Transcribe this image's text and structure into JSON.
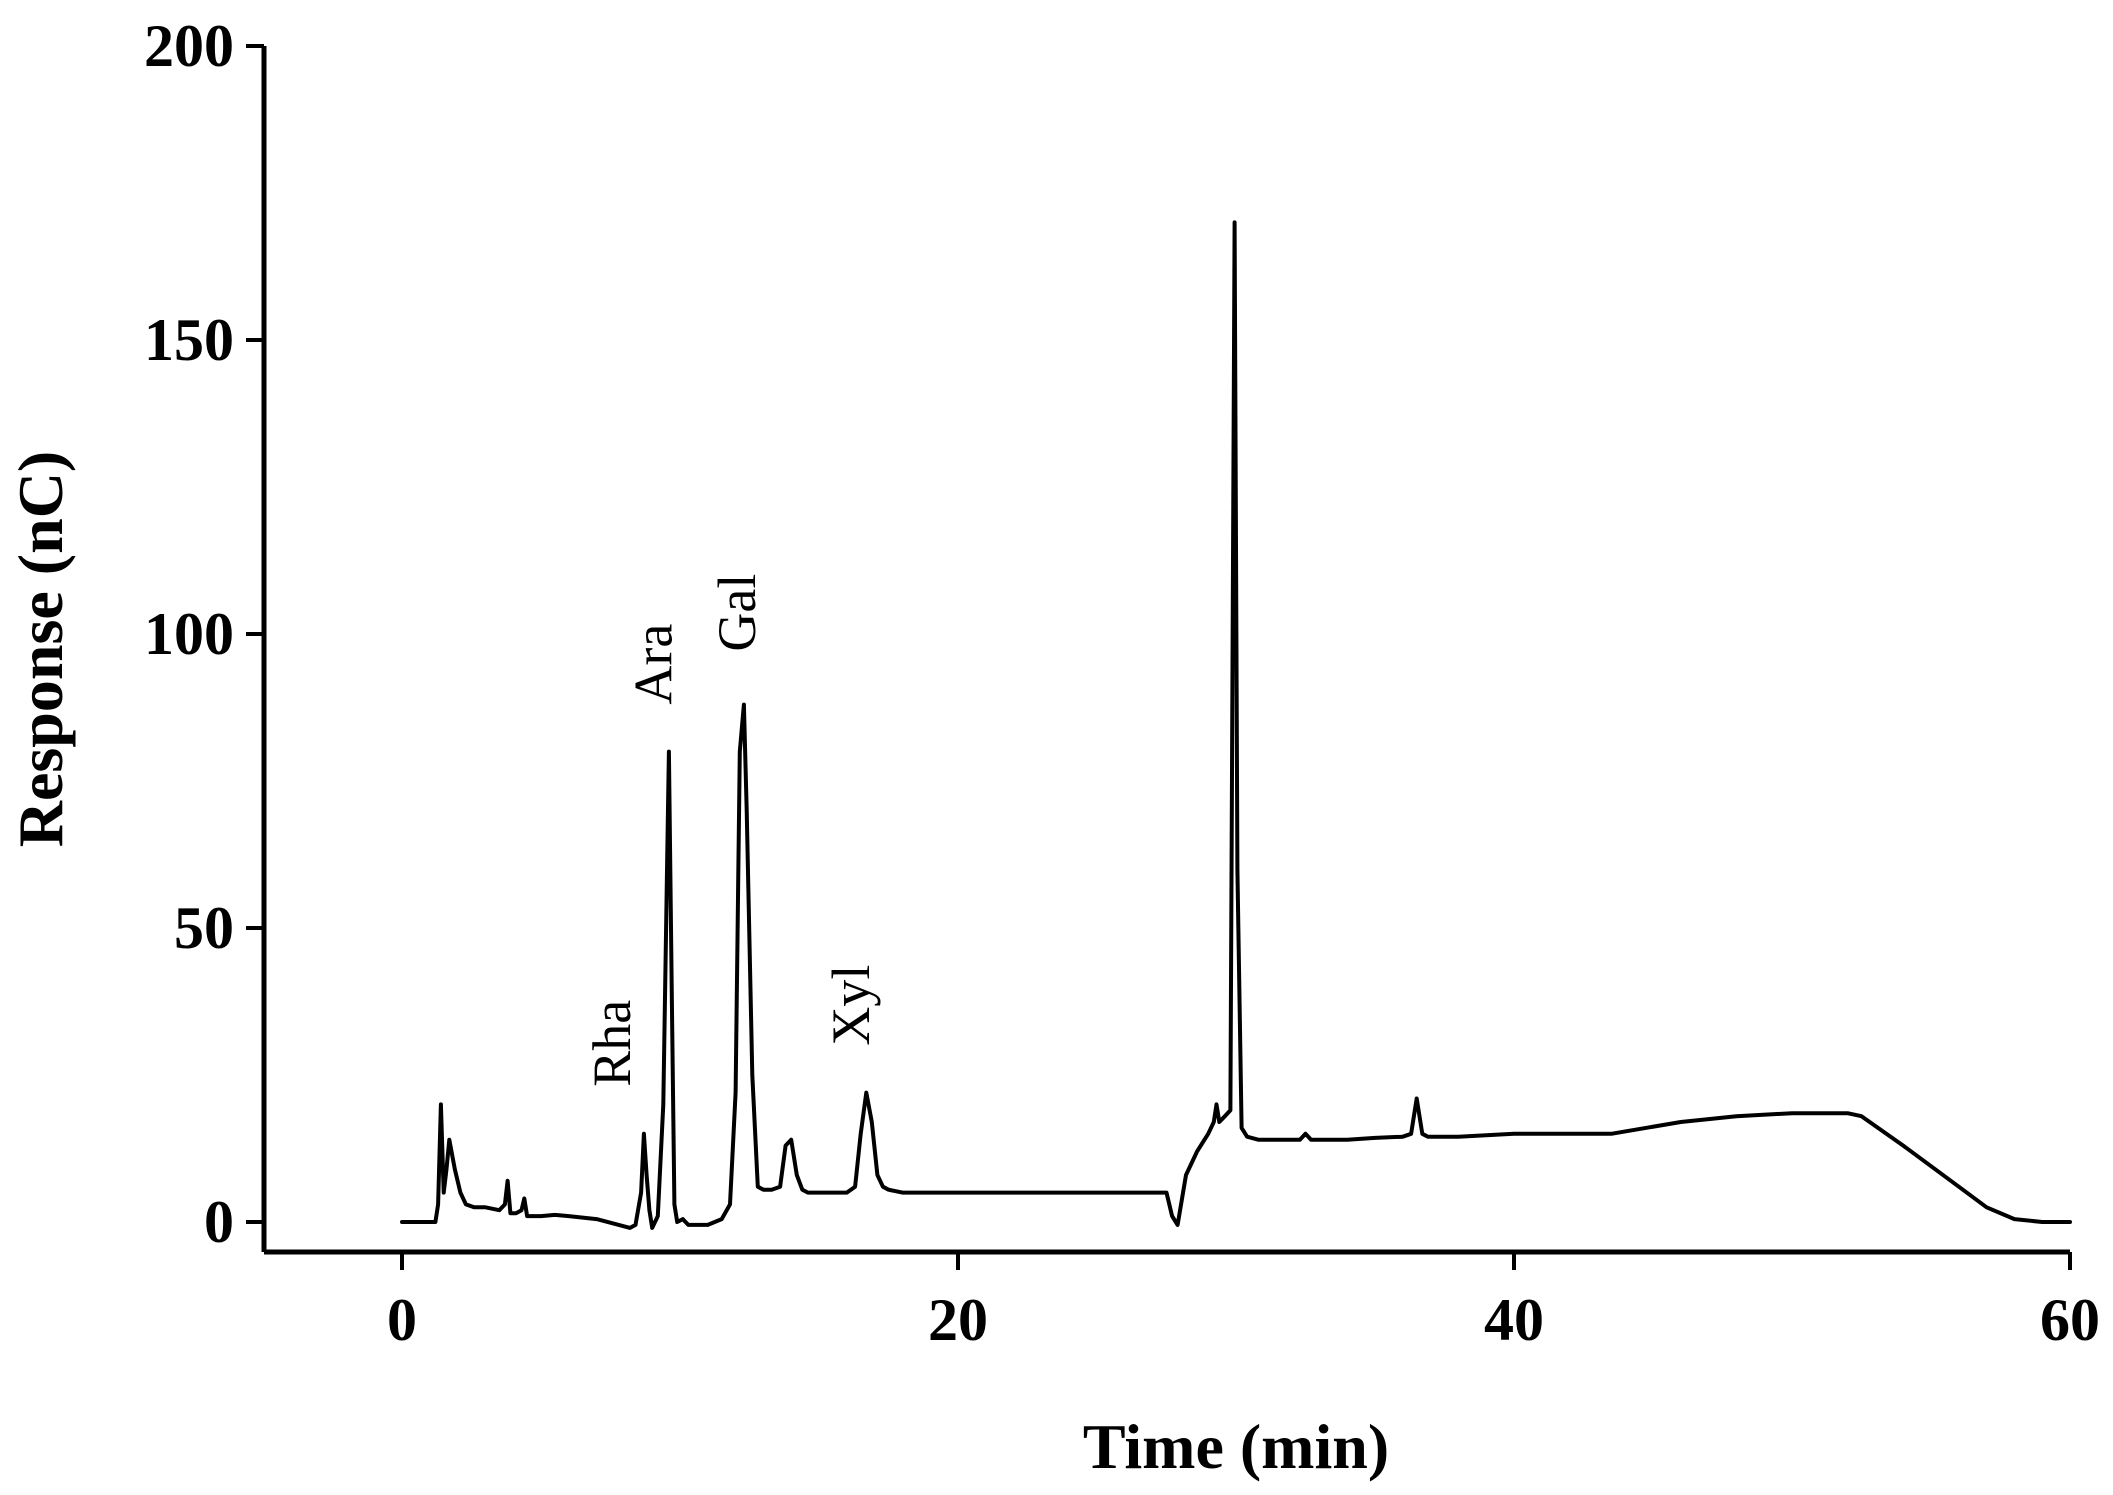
{
  "chart_data": {
    "type": "line",
    "title": "",
    "xlabel": "Time (min)",
    "ylabel": "Response (nC)",
    "xlim": [
      -5,
      60
    ],
    "ylim": [
      -5,
      200
    ],
    "xticks": [
      0,
      20,
      40,
      60
    ],
    "yticks": [
      0,
      50,
      100,
      150,
      200
    ],
    "grid": false,
    "legend": "none",
    "series": [
      {
        "color": "#000000",
        "x": [
          0,
          1.2,
          1.3,
          1.4,
          1.5,
          1.6,
          1.7,
          1.9,
          2.1,
          2.3,
          2.6,
          3.0,
          3.5,
          3.7,
          3.8,
          3.9,
          4.1,
          4.3,
          4.4,
          4.5,
          4.7,
          5.0,
          5.5,
          6.0,
          7.0,
          7.8,
          8.2,
          8.4,
          8.6,
          8.7,
          8.8,
          8.9,
          9.0,
          9.2,
          9.4,
          9.6,
          9.7,
          9.8,
          9.9,
          10.1,
          10.3,
          10.5,
          10.7,
          11.0,
          11.5,
          11.8,
          12.0,
          12.15,
          12.3,
          12.4,
          12.6,
          12.8,
          13.0,
          13.3,
          13.6,
          13.8,
          14.0,
          14.2,
          14.4,
          14.6,
          15.0,
          15.5,
          16.0,
          16.3,
          16.5,
          16.7,
          16.9,
          17.1,
          17.3,
          17.5,
          18.0,
          20.0,
          24.0,
          27.5,
          27.7,
          27.9,
          28.2,
          28.6,
          29.0,
          29.2,
          29.3,
          29.4,
          29.6,
          29.8,
          29.95,
          30.05,
          30.2,
          30.4,
          30.8,
          31.5,
          32.3,
          32.5,
          32.7,
          33.0,
          34.0,
          35.0,
          36.0,
          36.3,
          36.5,
          36.6,
          36.7,
          36.9,
          37.2,
          38.0,
          40.0,
          42.0,
          43.5,
          46.0,
          48.0,
          50.0,
          52.0,
          52.5,
          54.0,
          56.0,
          57.0,
          58.0,
          59.0,
          60.0
        ],
        "y": [
          0,
          0,
          3,
          20,
          5,
          9,
          14,
          9,
          5,
          3,
          2.5,
          2.5,
          2,
          3,
          7,
          1.5,
          1.5,
          2,
          4,
          1,
          1,
          1,
          1.2,
          1,
          0.5,
          -0.5,
          -1,
          -0.5,
          5,
          15,
          8,
          2,
          -1,
          1,
          20,
          80,
          40,
          3,
          0,
          0.5,
          -0.5,
          -0.5,
          -0.5,
          -0.5,
          0.5,
          3,
          22,
          80,
          88,
          70,
          25,
          6,
          5.5,
          5.5,
          6,
          13,
          14,
          8,
          5.5,
          5,
          5,
          5,
          5,
          6,
          15,
          22,
          17,
          8,
          6,
          5.5,
          5,
          5,
          5,
          5,
          1,
          -0.5,
          8,
          12,
          15,
          17,
          20,
          17,
          18,
          19,
          170,
          60,
          16,
          14.5,
          14,
          14,
          14,
          15,
          14,
          14,
          14,
          14.3,
          14.5,
          15,
          21,
          18,
          15,
          14.5,
          14.5,
          14.5,
          15,
          15,
          15,
          17,
          18,
          18.5,
          18.5,
          18,
          13,
          6,
          2.5,
          0.5,
          0,
          0
        ]
      }
    ],
    "annotations": [
      {
        "text": "Rha",
        "x": 8.2,
        "y": 23
      },
      {
        "text": "Ara",
        "x": 9.7,
        "y": 88
      },
      {
        "text": "Gal",
        "x": 12.7,
        "y": 97
      },
      {
        "text": "Xyl",
        "x": 16.8,
        "y": 30
      }
    ]
  }
}
